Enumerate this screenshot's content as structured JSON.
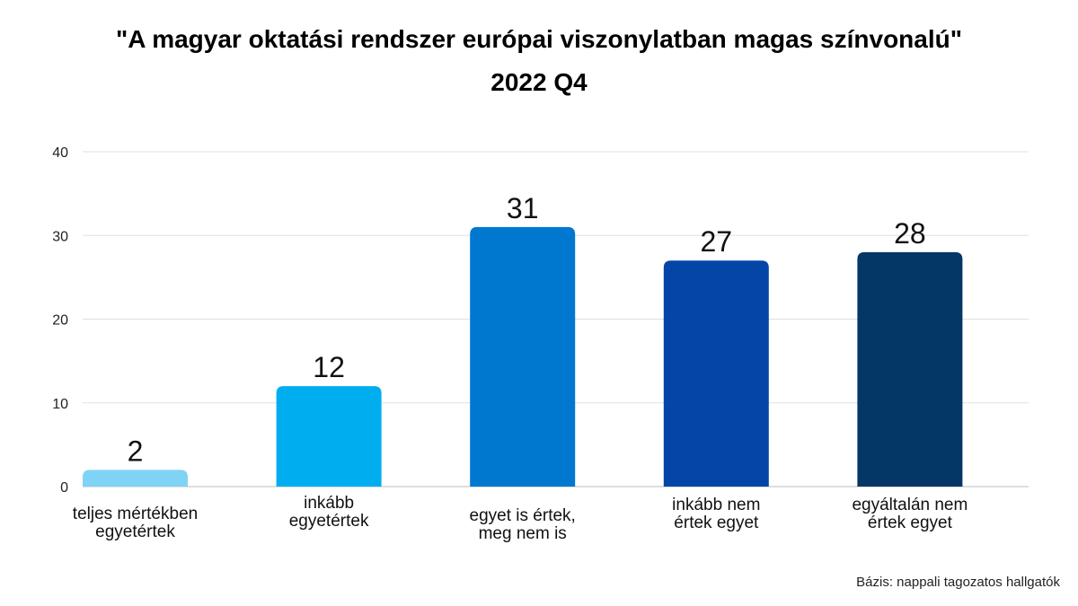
{
  "chart_data": {
    "type": "bar",
    "title": "\"A magyar oktatási rendszer európai viszonylatban magas színvonalú\"",
    "subtitle": "2022 Q4",
    "xlabel": "",
    "ylabel": "",
    "ylim": [
      0,
      40
    ],
    "yticks": [
      0,
      10,
      20,
      30,
      40
    ],
    "grid": true,
    "categories": [
      [
        "teljes mértékben",
        "egyetértek"
      ],
      [
        "inkább",
        "egyetértek"
      ],
      [
        "egyet is értek,",
        "meg nem is"
      ],
      [
        "inkább nem",
        "értek egyet"
      ],
      [
        "egyáltalán nem",
        "értek egyet"
      ]
    ],
    "values": [
      2,
      12,
      31,
      27,
      28
    ],
    "colors": [
      "#7fd4f5",
      "#00aeef",
      "#0078d0",
      "#0346a8",
      "#043766"
    ],
    "data_labels": [
      "2",
      "12",
      "31",
      "27",
      "28"
    ],
    "footnote": "Bázis: nappali tagozatos hallgatók"
  }
}
